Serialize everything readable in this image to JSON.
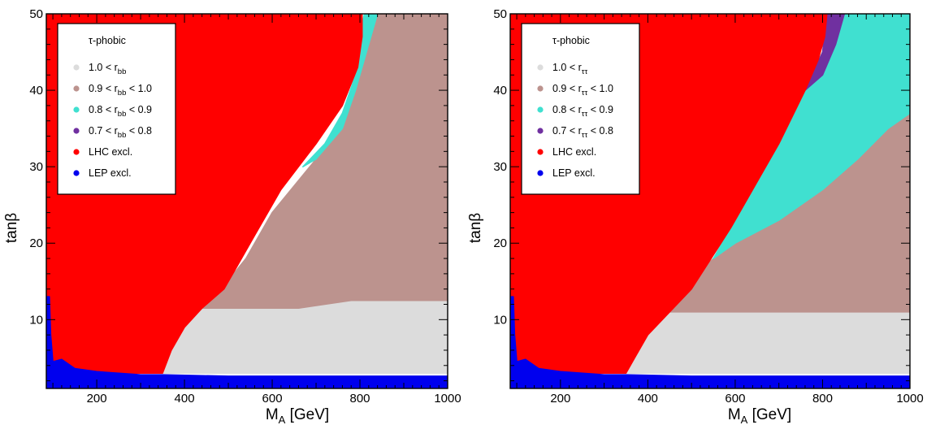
{
  "chart_data": [
    {
      "type": "area",
      "panel": "left",
      "xlabel": "M_A [GeV]",
      "ylabel": "tanβ",
      "xlim": [
        85,
        1000
      ],
      "ylim": [
        1,
        50
      ],
      "xticks": [
        200,
        400,
        600,
        800,
        1000
      ],
      "yticks": [
        10,
        20,
        30,
        40,
        50
      ],
      "grid": false,
      "legend_position": "top-left",
      "legend": {
        "title": "τ-phobic",
        "entries": [
          {
            "label": "1.0 < r",
            "sub": "bb",
            "tail": "",
            "color": "#dcdcdc"
          },
          {
            "label": "0.9 < r",
            "sub": "bb",
            "tail": " < 1.0",
            "color": "#bc938e"
          },
          {
            "label": "0.8 < r",
            "sub": "bb",
            "tail": " < 0.9",
            "color": "#40e0d0"
          },
          {
            "label": "0.7 < r",
            "sub": "bb",
            "tail": " < 0.8",
            "color": "#7030a0"
          },
          {
            "label": "LHC excl.",
            "sub": "",
            "tail": "",
            "color": "#ff0000"
          },
          {
            "label": "LEP excl.",
            "sub": "",
            "tail": "",
            "color": "#0000ee"
          }
        ]
      },
      "series": [
        {
          "name": "1.0 < r_bb",
          "color": "#dcdcdc",
          "region": [
            [
              350,
              3
            ],
            [
              1000,
              3
            ],
            [
              1000,
              12.5
            ],
            [
              780,
              12.5
            ],
            [
              660,
              11.5
            ],
            [
              430,
              11.5
            ],
            [
              390,
              8
            ],
            [
              350,
              4
            ]
          ]
        },
        {
          "name": "0.9 < r_bb < 1.0",
          "color": "#bc938e",
          "region": [
            [
              430,
              11.5
            ],
            [
              660,
              11.5
            ],
            [
              780,
              12.5
            ],
            [
              1000,
              12.5
            ],
            [
              1000,
              50
            ],
            [
              830,
              50
            ],
            [
              800,
              46
            ],
            [
              790,
              40
            ],
            [
              760,
              35
            ],
            [
              700,
              31
            ],
            [
              600,
              24
            ],
            [
              540,
              18
            ],
            [
              470,
              13
            ]
          ]
        },
        {
          "name": "0.8 < r_bb < 0.9",
          "color": "#40e0d0",
          "region": [
            [
              670,
              30
            ],
            [
              720,
              33
            ],
            [
              760,
              37
            ],
            [
              790,
              42
            ],
            [
              800,
              47
            ],
            [
              810,
              50
            ],
            [
              840,
              50
            ],
            [
              820,
              46
            ],
            [
              790,
              40
            ],
            [
              760,
              35
            ],
            [
              700,
              31
            ]
          ]
        },
        {
          "name": "LHC excl.",
          "color": "#ff0000",
          "region": [
            [
              85,
              50
            ],
            [
              805,
              50
            ],
            [
              805,
              47
            ],
            [
              795,
              43
            ],
            [
              760,
              38
            ],
            [
              700,
              33
            ],
            [
              620,
              27
            ],
            [
              560,
              21
            ],
            [
              520,
              17
            ],
            [
              490,
              14
            ],
            [
              440,
              11.5
            ],
            [
              400,
              9
            ],
            [
              370,
              6
            ],
            [
              350,
              3
            ],
            [
              85,
              3
            ]
          ]
        },
        {
          "name": "LEP excl.",
          "color": "#0000ee",
          "region": [
            [
              85,
              1
            ],
            [
              1000,
              1
            ],
            [
              1000,
              2.6
            ],
            [
              500,
              2.6
            ],
            [
              350,
              2.8
            ],
            [
              300,
              2.8
            ],
            [
              200,
              3.2
            ],
            [
              150,
              3.6
            ],
            [
              120,
              4.8
            ],
            [
              100,
              4.5
            ],
            [
              95,
              8
            ],
            [
              92,
              13
            ],
            [
              85,
              13
            ]
          ]
        }
      ]
    },
    {
      "type": "area",
      "panel": "right",
      "xlabel": "M_A [GeV]",
      "ylabel": "tanβ",
      "xlim": [
        85,
        1000
      ],
      "ylim": [
        1,
        50
      ],
      "xticks": [
        200,
        400,
        600,
        800,
        1000
      ],
      "yticks": [
        10,
        20,
        30,
        40,
        50
      ],
      "grid": false,
      "legend_position": "top-left",
      "legend": {
        "title": "τ-phobic",
        "entries": [
          {
            "label": "1.0 < r",
            "sub": "ττ",
            "tail": "",
            "color": "#dcdcdc"
          },
          {
            "label": "0.9 < r",
            "sub": "ττ",
            "tail": " < 1.0",
            "color": "#bc938e"
          },
          {
            "label": "0.8 < r",
            "sub": "ττ",
            "tail": " < 0.9",
            "color": "#40e0d0"
          },
          {
            "label": "0.7 < r",
            "sub": "ττ",
            "tail": " < 0.8",
            "color": "#7030a0"
          },
          {
            "label": "LHC excl.",
            "sub": "",
            "tail": "",
            "color": "#ff0000"
          },
          {
            "label": "LEP excl.",
            "sub": "",
            "tail": "",
            "color": "#0000ee"
          }
        ]
      },
      "series": [
        {
          "name": "1.0 < r_ττ",
          "color": "#dcdcdc",
          "region": [
            [
              350,
              3
            ],
            [
              1000,
              3
            ],
            [
              1000,
              11
            ],
            [
              440,
              11
            ],
            [
              400,
              8
            ],
            [
              350,
              4
            ]
          ]
        },
        {
          "name": "0.9 < r_ττ < 1.0",
          "color": "#bc938e",
          "region": [
            [
              440,
              11
            ],
            [
              1000,
              11
            ],
            [
              1000,
              37
            ],
            [
              950,
              35
            ],
            [
              880,
              31
            ],
            [
              800,
              27
            ],
            [
              700,
              23
            ],
            [
              600,
              20
            ],
            [
              550,
              18
            ],
            [
              500,
              15
            ],
            [
              470,
              13
            ]
          ]
        },
        {
          "name": "0.8 < r_ττ < 0.9",
          "color": "#40e0d0",
          "region": [
            [
              550,
              18
            ],
            [
              600,
              20
            ],
            [
              700,
              23
            ],
            [
              800,
              27
            ],
            [
              880,
              31
            ],
            [
              950,
              35
            ],
            [
              1000,
              37
            ],
            [
              1000,
              50
            ],
            [
              850,
              50
            ],
            [
              800,
              45
            ],
            [
              760,
              40
            ],
            [
              700,
              33
            ],
            [
              640,
              27
            ],
            [
              590,
              22
            ]
          ]
        },
        {
          "name": "0.7 < r_ττ < 0.8",
          "color": "#7030a0",
          "region": [
            [
              760,
              40
            ],
            [
              800,
              45
            ],
            [
              810,
              50
            ],
            [
              850,
              50
            ],
            [
              830,
              46
            ],
            [
              800,
              42
            ]
          ]
        },
        {
          "name": "LHC excl.",
          "color": "#ff0000",
          "region": [
            [
              85,
              50
            ],
            [
              810,
              50
            ],
            [
              805,
              47
            ],
            [
              790,
              44
            ],
            [
              760,
              40
            ],
            [
              700,
              33
            ],
            [
              640,
              27
            ],
            [
              590,
              22
            ],
            [
              545,
              18
            ],
            [
              500,
              14
            ],
            [
              450,
              11
            ],
            [
              400,
              8
            ],
            [
              370,
              5
            ],
            [
              350,
              3
            ],
            [
              85,
              3
            ]
          ]
        },
        {
          "name": "LEP excl.",
          "color": "#0000ee",
          "region": [
            [
              85,
              1
            ],
            [
              1000,
              1
            ],
            [
              1000,
              2.6
            ],
            [
              500,
              2.6
            ],
            [
              350,
              2.8
            ],
            [
              300,
              2.8
            ],
            [
              200,
              3.2
            ],
            [
              150,
              3.6
            ],
            [
              120,
              4.8
            ],
            [
              100,
              4.5
            ],
            [
              95,
              8
            ],
            [
              92,
              13
            ],
            [
              85,
              13
            ]
          ]
        }
      ]
    }
  ]
}
